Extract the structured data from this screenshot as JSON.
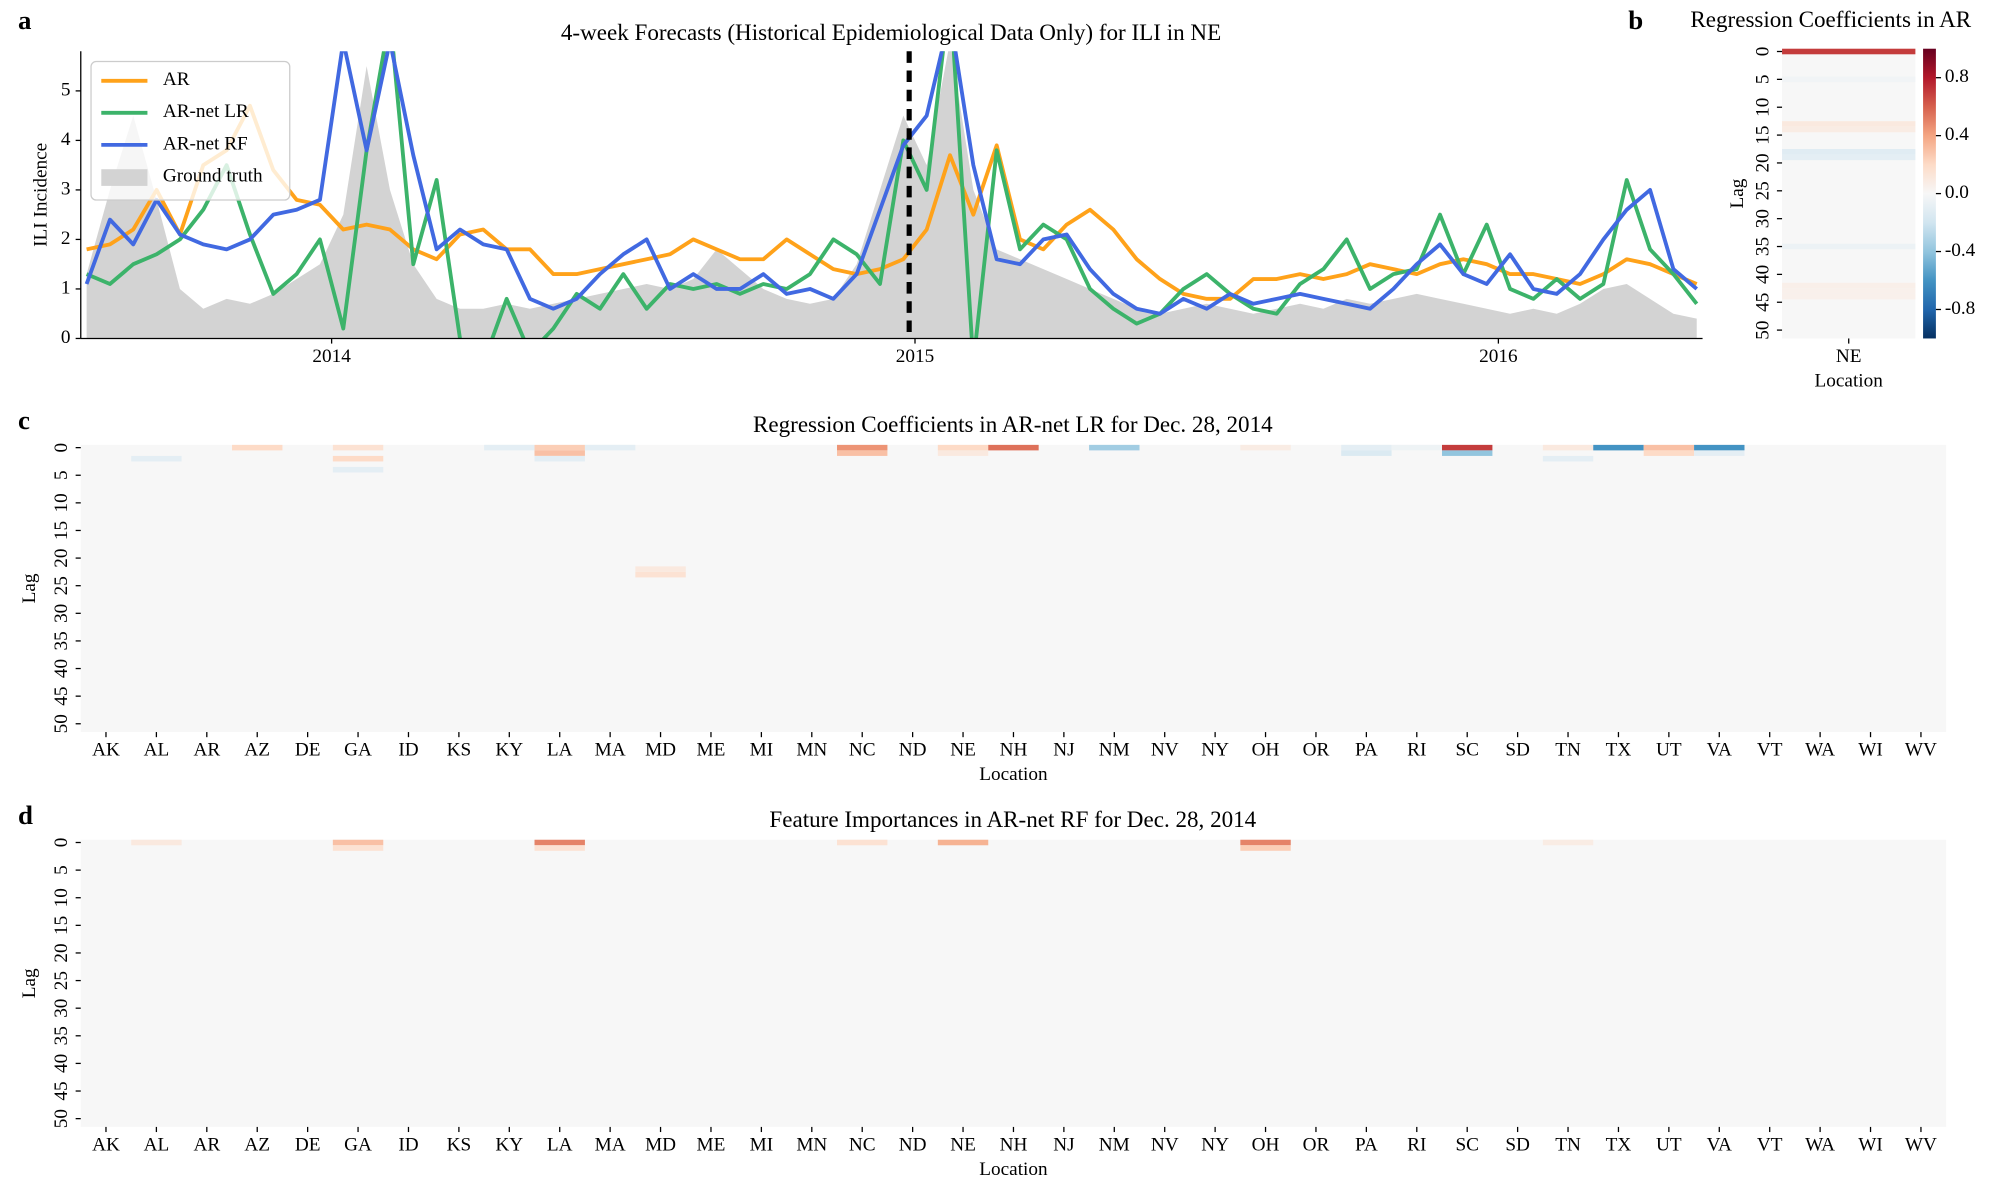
{
  "chart_data": [
    {
      "type": "line",
      "panel": "a",
      "title": "4-week Forecasts (Historical Epidemiological Data Only) for ILI in NE",
      "ylabel": "ILI Incidence",
      "x": [
        2013.58,
        2013.62,
        2013.66,
        2013.7,
        2013.74,
        2013.78,
        2013.82,
        2013.86,
        2013.9,
        2013.94,
        2013.98,
        2014.02,
        2014.06,
        2014.1,
        2014.14,
        2014.18,
        2014.22,
        2014.26,
        2014.3,
        2014.34,
        2014.38,
        2014.42,
        2014.46,
        2014.5,
        2014.54,
        2014.58,
        2014.62,
        2014.66,
        2014.7,
        2014.74,
        2014.78,
        2014.82,
        2014.86,
        2014.9,
        2014.94,
        2014.98,
        2015.02,
        2015.06,
        2015.1,
        2015.14,
        2015.18,
        2015.22,
        2015.26,
        2015.3,
        2015.34,
        2015.38,
        2015.42,
        2015.46,
        2015.5,
        2015.54,
        2015.58,
        2015.62,
        2015.66,
        2015.7,
        2015.74,
        2015.78,
        2015.82,
        2015.86,
        2015.9,
        2015.94,
        2015.98,
        2016.02,
        2016.06,
        2016.1,
        2016.14,
        2016.18,
        2016.22,
        2016.26,
        2016.3,
        2016.34
      ],
      "series": [
        {
          "name": "AR",
          "color": "#ffa21a",
          "style": "line",
          "values": [
            1.8,
            1.9,
            2.2,
            3.0,
            2.1,
            3.5,
            3.8,
            4.7,
            3.4,
            2.8,
            2.7,
            2.2,
            2.3,
            2.2,
            1.8,
            1.6,
            2.1,
            2.2,
            1.8,
            1.8,
            1.3,
            1.3,
            1.4,
            1.5,
            1.6,
            1.7,
            2.0,
            1.8,
            1.6,
            1.6,
            2.0,
            1.7,
            1.4,
            1.3,
            1.4,
            1.6,
            2.2,
            3.7,
            2.5,
            3.9,
            2.0,
            1.8,
            2.3,
            2.6,
            2.2,
            1.6,
            1.2,
            0.9,
            0.8,
            0.8,
            1.2,
            1.2,
            1.3,
            1.2,
            1.3,
            1.5,
            1.4,
            1.3,
            1.5,
            1.6,
            1.5,
            1.3,
            1.3,
            1.2,
            1.1,
            1.3,
            1.6,
            1.5,
            1.3,
            1.1
          ]
        },
        {
          "name": "AR-net LR",
          "color": "#3cb36a",
          "style": "line",
          "values": [
            1.3,
            1.1,
            1.5,
            1.7,
            2.0,
            2.6,
            3.5,
            2.1,
            0.9,
            1.3,
            2.0,
            0.2,
            3.8,
            6.5,
            1.5,
            3.2,
            0.0,
            -0.5,
            0.8,
            -0.3,
            0.2,
            0.9,
            0.6,
            1.3,
            0.6,
            1.1,
            1.0,
            1.1,
            0.9,
            1.1,
            1.0,
            1.3,
            2.0,
            1.7,
            1.1,
            4.0,
            3.0,
            7.0,
            -0.5,
            3.8,
            1.8,
            2.3,
            2.0,
            1.0,
            0.6,
            0.3,
            0.5,
            1.0,
            1.3,
            0.9,
            0.6,
            0.5,
            1.1,
            1.4,
            2.0,
            1.0,
            1.3,
            1.4,
            2.5,
            1.3,
            2.3,
            1.0,
            0.8,
            1.2,
            0.8,
            1.1,
            3.2,
            1.8,
            1.3,
            0.7
          ]
        },
        {
          "name": "AR-net RF",
          "color": "#4169e1",
          "style": "line",
          "values": [
            1.1,
            2.4,
            1.9,
            2.8,
            2.1,
            1.9,
            1.8,
            2.0,
            2.5,
            2.6,
            2.8,
            6.0,
            3.8,
            6.0,
            3.7,
            1.8,
            2.2,
            1.9,
            1.8,
            0.8,
            0.6,
            0.8,
            1.3,
            1.7,
            2.0,
            1.0,
            1.3,
            1.0,
            1.0,
            1.3,
            0.9,
            1.0,
            0.8,
            1.3,
            2.6,
            3.9,
            4.5,
            6.5,
            3.5,
            1.6,
            1.5,
            2.0,
            2.1,
            1.4,
            0.9,
            0.6,
            0.5,
            0.8,
            0.6,
            0.9,
            0.7,
            0.8,
            0.9,
            0.8,
            0.7,
            0.6,
            1.0,
            1.5,
            1.9,
            1.3,
            1.1,
            1.7,
            1.0,
            0.9,
            1.3,
            2.0,
            2.6,
            3.0,
            1.4,
            1.0
          ]
        },
        {
          "name": "Ground truth",
          "color": "#d3d3d3",
          "style": "area",
          "values": [
            1.3,
            3.0,
            4.5,
            2.8,
            1.0,
            0.6,
            0.8,
            0.7,
            0.9,
            1.2,
            1.5,
            2.5,
            5.5,
            3.0,
            1.5,
            0.8,
            0.6,
            0.6,
            0.7,
            0.6,
            0.7,
            0.8,
            0.9,
            1.0,
            1.1,
            1.0,
            1.2,
            1.8,
            1.4,
            1.0,
            0.8,
            0.7,
            0.8,
            1.5,
            3.0,
            4.5,
            3.5,
            6.0,
            3.0,
            1.8,
            1.6,
            1.4,
            1.2,
            1.0,
            0.8,
            0.6,
            0.5,
            0.6,
            0.7,
            0.6,
            0.5,
            0.6,
            0.7,
            0.6,
            0.8,
            0.7,
            0.8,
            0.9,
            0.8,
            0.7,
            0.6,
            0.5,
            0.6,
            0.5,
            0.7,
            1.0,
            1.1,
            0.8,
            0.5,
            0.4
          ]
        }
      ],
      "xlim": [
        2013.57,
        2016.35
      ],
      "xticks": [
        2014,
        2015,
        2016
      ],
      "ylim": [
        0,
        5.8
      ],
      "yticks": [
        0,
        1,
        2,
        3,
        4,
        5
      ],
      "vline": 2014.99,
      "legend": "upper left"
    },
    {
      "type": "heatmap",
      "panel": "b",
      "title": "Regression Coefficients in AR",
      "xlabel": "Location",
      "ylabel": "Lag",
      "categories": [
        "NE"
      ],
      "ylim": [
        0,
        52
      ],
      "yticks": [
        0,
        5,
        10,
        15,
        20,
        25,
        30,
        35,
        40,
        45,
        50
      ],
      "clim": [
        -1,
        1
      ],
      "cells": [
        [
          "NE",
          0,
          0.7
        ],
        [
          "NE",
          5,
          -0.03
        ],
        [
          "NE",
          13,
          0.1
        ],
        [
          "NE",
          14,
          0.08
        ],
        [
          "NE",
          18,
          -0.12
        ],
        [
          "NE",
          19,
          -0.1
        ],
        [
          "NE",
          35,
          -0.06
        ],
        [
          "NE",
          42,
          0.06
        ],
        [
          "NE",
          43,
          0.05
        ],
        [
          "NE",
          44,
          0.05
        ]
      ],
      "colorbar_ticks": [
        -0.8,
        -0.4,
        {
          "value": 0,
          "label": "0.0"
        },
        0.4,
        0.8
      ]
    },
    {
      "type": "heatmap",
      "panel": "c",
      "title": "Regression Coefficients in AR-net LR for Dec. 28, 2014",
      "xlabel": "Location",
      "ylabel": "Lag",
      "categories": [
        "AK",
        "AL",
        "AR",
        "AZ",
        "DE",
        "GA",
        "ID",
        "KS",
        "KY",
        "LA",
        "MA",
        "MD",
        "ME",
        "MI",
        "MN",
        "NC",
        "ND",
        "NE",
        "NH",
        "NJ",
        "NM",
        "NV",
        "NY",
        "OH",
        "OR",
        "PA",
        "RI",
        "SC",
        "SD",
        "TN",
        "TX",
        "UT",
        "VA",
        "VT",
        "WA",
        "WI",
        "WV"
      ],
      "ylim": [
        0,
        52
      ],
      "yticks": [
        0,
        5,
        10,
        15,
        20,
        25,
        30,
        35,
        40,
        45,
        50
      ],
      "clim": [
        -1,
        1
      ],
      "cells": [
        [
          "AL",
          2,
          -0.1
        ],
        [
          "AZ",
          0,
          0.2
        ],
        [
          "GA",
          0,
          0.15
        ],
        [
          "GA",
          2,
          0.2
        ],
        [
          "GA",
          4,
          -0.1
        ],
        [
          "KY",
          0,
          -0.1
        ],
        [
          "LA",
          0,
          0.25
        ],
        [
          "LA",
          1,
          0.3
        ],
        [
          "LA",
          2,
          -0.1
        ],
        [
          "MA",
          0,
          -0.1
        ],
        [
          "MD",
          22,
          0.1
        ],
        [
          "MD",
          23,
          0.15
        ],
        [
          "NC",
          0,
          0.45
        ],
        [
          "NC",
          1,
          0.3
        ],
        [
          "NE",
          0,
          0.2
        ],
        [
          "NE",
          1,
          0.1
        ],
        [
          "NH",
          0,
          0.55
        ],
        [
          "NM",
          0,
          -0.35
        ],
        [
          "OH",
          0,
          0.08
        ],
        [
          "PA",
          0,
          -0.1
        ],
        [
          "PA",
          1,
          -0.15
        ],
        [
          "RI",
          0,
          -0.05
        ],
        [
          "SC",
          0,
          0.7
        ],
        [
          "SC",
          1,
          -0.4
        ],
        [
          "TN",
          0,
          0.1
        ],
        [
          "TN",
          2,
          -0.1
        ],
        [
          "TX",
          0,
          -0.6
        ],
        [
          "UT",
          0,
          0.3
        ],
        [
          "UT",
          1,
          0.2
        ],
        [
          "VA",
          0,
          -0.6
        ],
        [
          "VA",
          1,
          -0.1
        ]
      ]
    },
    {
      "type": "heatmap",
      "panel": "d",
      "title": "Feature Importances in AR-net RF for Dec. 28, 2014",
      "xlabel": "Location",
      "ylabel": "Lag",
      "categories": [
        "AK",
        "AL",
        "AR",
        "AZ",
        "DE",
        "GA",
        "ID",
        "KS",
        "KY",
        "LA",
        "MA",
        "MD",
        "ME",
        "MI",
        "MN",
        "NC",
        "ND",
        "NE",
        "NH",
        "NJ",
        "NM",
        "NV",
        "NY",
        "OH",
        "OR",
        "PA",
        "RI",
        "SC",
        "SD",
        "TN",
        "TX",
        "UT",
        "VA",
        "VT",
        "WA",
        "WI",
        "WV"
      ],
      "ylim": [
        0,
        52
      ],
      "yticks": [
        0,
        5,
        10,
        15,
        20,
        25,
        30,
        35,
        40,
        45,
        50
      ],
      "clim": [
        -1,
        1
      ],
      "cells": [
        [
          "AL",
          0,
          0.1
        ],
        [
          "GA",
          0,
          0.3
        ],
        [
          "GA",
          1,
          0.15
        ],
        [
          "LA",
          0,
          0.5
        ],
        [
          "LA",
          1,
          0.15
        ],
        [
          "NC",
          0,
          0.15
        ],
        [
          "NE",
          0,
          0.35
        ],
        [
          "OH",
          0,
          0.5
        ],
        [
          "OH",
          1,
          0.25
        ],
        [
          "TN",
          0,
          0.08
        ]
      ]
    }
  ]
}
